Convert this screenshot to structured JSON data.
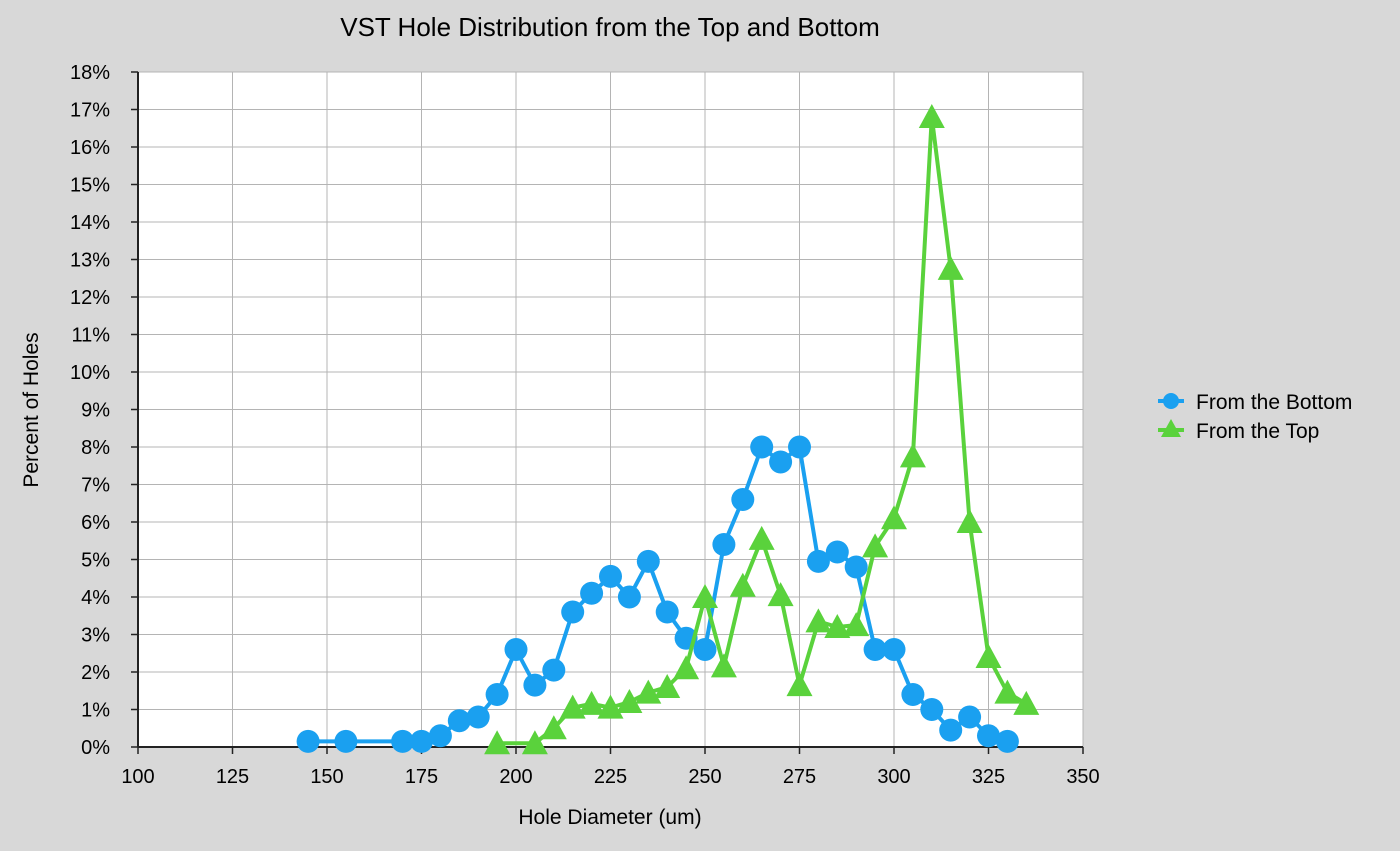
{
  "chart_data": {
    "type": "line",
    "title": "VST Hole Distribution from the Top and Bottom",
    "xlabel": "Hole Diameter (um)",
    "ylabel": "Percent of Holes",
    "xlim": [
      100,
      350
    ],
    "ylim": [
      0,
      18
    ],
    "x_ticks": [
      100,
      125,
      150,
      175,
      200,
      225,
      250,
      275,
      300,
      325,
      350
    ],
    "y_ticks": [
      0,
      1,
      2,
      3,
      4,
      5,
      6,
      7,
      8,
      9,
      10,
      11,
      12,
      13,
      14,
      15,
      16,
      17,
      18
    ],
    "y_tick_labels": [
      "0%",
      "1%",
      "2%",
      "3%",
      "4%",
      "5%",
      "6%",
      "7%",
      "8%",
      "9%",
      "10%",
      "11%",
      "12%",
      "13%",
      "14%",
      "15%",
      "16%",
      "17%",
      "18%"
    ],
    "grid": true,
    "legend_position": "right",
    "series": [
      {
        "name": "From the Bottom",
        "marker": "circle",
        "color": "#1aa0f0",
        "x": [
          145,
          155,
          170,
          175,
          180,
          185,
          190,
          195,
          200,
          205,
          210,
          215,
          220,
          225,
          230,
          235,
          240,
          245,
          250,
          255,
          260,
          265,
          270,
          275,
          280,
          285,
          290,
          295,
          300,
          305,
          310,
          315,
          320,
          325,
          330
        ],
        "y": [
          0.15,
          0.15,
          0.15,
          0.15,
          0.3,
          0.7,
          0.8,
          1.4,
          2.6,
          1.65,
          2.05,
          3.6,
          4.1,
          4.55,
          4.0,
          4.95,
          3.6,
          2.9,
          2.6,
          5.4,
          6.6,
          8.0,
          7.6,
          8.0,
          4.95,
          5.2,
          4.8,
          2.6,
          2.6,
          1.4,
          1.0,
          0.45,
          0.8,
          0.3,
          0.15
        ]
      },
      {
        "name": "From the Top",
        "marker": "triangle",
        "color": "#5ad23c",
        "x": [
          195,
          205,
          210,
          215,
          220,
          225,
          230,
          235,
          240,
          245,
          250,
          255,
          260,
          265,
          270,
          275,
          280,
          285,
          290,
          295,
          300,
          305,
          310,
          315,
          320,
          325,
          330,
          335
        ],
        "y": [
          0.1,
          0.1,
          0.5,
          1.05,
          1.15,
          1.05,
          1.2,
          1.45,
          1.6,
          2.1,
          4.0,
          2.15,
          4.3,
          5.55,
          4.05,
          1.65,
          3.35,
          3.2,
          3.25,
          5.35,
          6.1,
          7.75,
          16.8,
          12.75,
          6.0,
          2.4,
          1.45,
          1.15
        ]
      }
    ]
  }
}
